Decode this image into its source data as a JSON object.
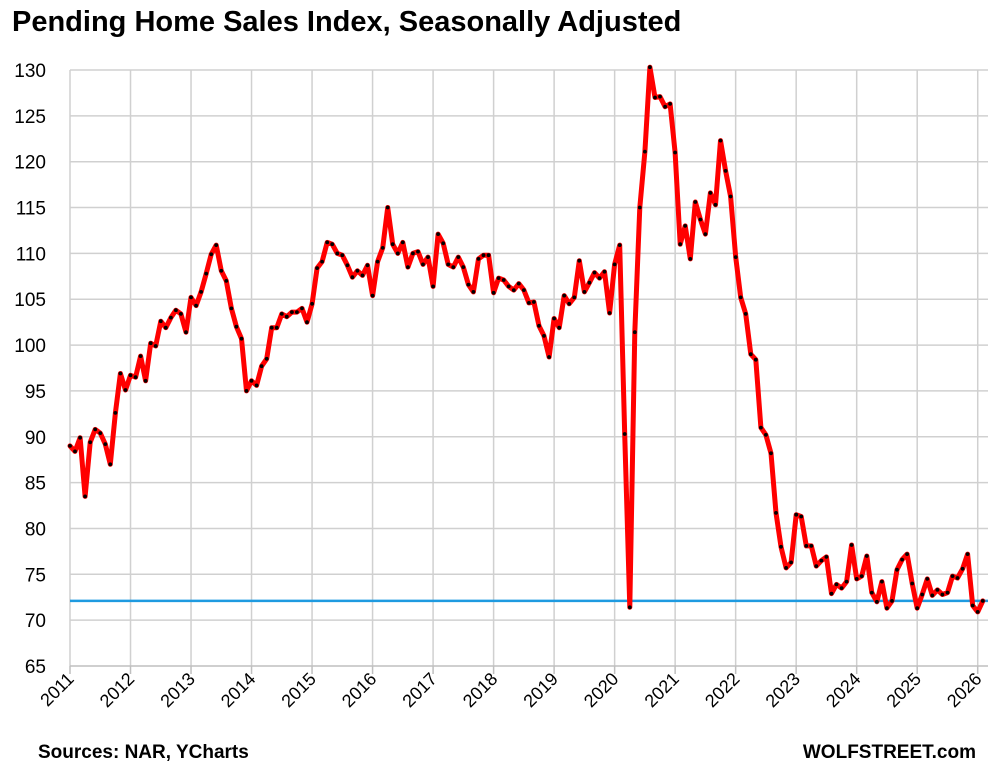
{
  "chart_title": "Pending Home Sales Index, Seasonally Adjusted",
  "source_text": "Sources: NAR, YCharts",
  "brand_text": "WOLFSTREET.com",
  "chart_data": {
    "type": "line",
    "title": "Pending Home Sales Index, Seasonally Adjusted",
    "xlabel": "",
    "ylabel": "",
    "ylim": [
      65,
      130
    ],
    "yticks": [
      65,
      70,
      75,
      80,
      85,
      90,
      95,
      100,
      105,
      110,
      115,
      120,
      125,
      130
    ],
    "xlim": [
      2011,
      2026.17
    ],
    "xticks": [
      2011,
      2012,
      2013,
      2014,
      2015,
      2016,
      2017,
      2018,
      2019,
      2020,
      2021,
      2022,
      2023,
      2024,
      2025,
      2026
    ],
    "grid": true,
    "line_color": "#ff0000",
    "marker_color": "#000000",
    "reference_line": {
      "value": 72.1,
      "color": "#1e9ae0"
    },
    "series": [
      {
        "start": "2011-01",
        "frequency": "monthly",
        "values": [
          89.0,
          88.4,
          89.9,
          83.5,
          89.4,
          90.8,
          90.4,
          89.2,
          87.0,
          92.6,
          96.9,
          95.1,
          96.7,
          96.5,
          98.8,
          96.1,
          100.2,
          99.9,
          102.6,
          101.9,
          103.0,
          103.8,
          103.4,
          101.4,
          105.2,
          104.3,
          105.8,
          107.8,
          109.9,
          110.9,
          108.1,
          107.0,
          104.0,
          102.0,
          100.7,
          95.0,
          96.1,
          95.6,
          97.7,
          98.5,
          101.9,
          101.9,
          103.4,
          103.1,
          103.6,
          103.6,
          104.0,
          102.5,
          104.5,
          108.4,
          109.1,
          111.2,
          111.0,
          110.0,
          109.8,
          108.7,
          107.4,
          108.1,
          107.6,
          108.7,
          105.4,
          109.1,
          110.6,
          115.0,
          111.0,
          110.0,
          111.2,
          108.5,
          110.0,
          110.2,
          108.8,
          109.6,
          106.4,
          112.1,
          111.1,
          108.8,
          108.5,
          109.6,
          108.5,
          106.6,
          105.8,
          109.4,
          109.8,
          109.8,
          105.7,
          107.3,
          107.1,
          106.4,
          106.0,
          106.7,
          106.0,
          104.6,
          104.7,
          102.1,
          101.0,
          98.7,
          102.9,
          101.9,
          105.4,
          104.5,
          105.2,
          109.2,
          105.8,
          106.8,
          107.9,
          107.3,
          108.0,
          103.5,
          108.8,
          110.9,
          90.3,
          71.4,
          101.4,
          115.0,
          121.1,
          130.3,
          127.0,
          127.1,
          126.0,
          126.3,
          121.0,
          111.0,
          113.0,
          109.4,
          115.6,
          113.7,
          112.1,
          116.6,
          115.3,
          122.3,
          119.0,
          116.2,
          109.6,
          105.2,
          103.4,
          99.0,
          98.4,
          91.0,
          90.2,
          88.2,
          81.7,
          78.0,
          75.7,
          76.3,
          81.5,
          81.3,
          78.1,
          78.1,
          75.9,
          76.5,
          76.9,
          72.9,
          73.9,
          73.5,
          74.2,
          78.2,
          74.5,
          74.8,
          77.0,
          73.0,
          72.0,
          74.2,
          71.3,
          72.1,
          75.5,
          76.6,
          77.2,
          74.0,
          71.3,
          72.8,
          74.5,
          72.7,
          73.3,
          72.8,
          73.0,
          74.8,
          74.6,
          75.6,
          77.2,
          71.6,
          70.9,
          72.1
        ]
      }
    ]
  }
}
